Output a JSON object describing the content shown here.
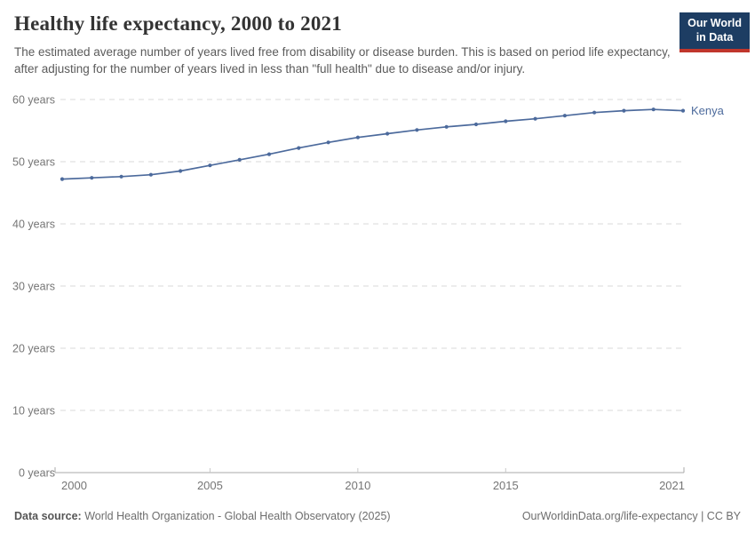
{
  "header": {
    "title": "Healthy life expectancy, 2000 to 2021",
    "subtitle": "The estimated average number of years lived free from disability or disease burden. This is based on period life expectancy, after adjusting for the number of years lived in less than \"full health\" due to disease and/or injury.",
    "logo": {
      "line1": "Our World",
      "line2": "in Data",
      "bg_color": "#1d3d63",
      "accent_color": "#c0362c"
    }
  },
  "chart_data": {
    "type": "line",
    "title": "Healthy life expectancy, 2000 to 2021",
    "xlabel": "",
    "ylabel": "",
    "xlim": [
      2000,
      2021
    ],
    "ylim": [
      0,
      60
    ],
    "x_ticks": [
      2000,
      2005,
      2010,
      2015,
      2021
    ],
    "y_ticks": [
      0,
      10,
      20,
      30,
      40,
      50,
      60
    ],
    "y_tick_suffix": " years",
    "grid": "horizontal-dashed",
    "legend_position": "end-of-line",
    "colors": {
      "gridline": "#d9d9d9",
      "axis": "#a8a8a8",
      "minor_tick": "#c9c9c9",
      "tick_label": "#757575"
    },
    "series": [
      {
        "name": "Kenya",
        "color": "#4c6a9c",
        "x": [
          2000,
          2001,
          2002,
          2003,
          2004,
          2005,
          2006,
          2007,
          2008,
          2009,
          2010,
          2011,
          2012,
          2013,
          2014,
          2015,
          2016,
          2017,
          2018,
          2019,
          2020,
          2021
        ],
        "values": [
          47.2,
          47.4,
          47.6,
          47.9,
          48.5,
          49.4,
          50.3,
          51.2,
          52.2,
          53.1,
          53.9,
          54.5,
          55.1,
          55.6,
          56.0,
          56.5,
          56.9,
          57.4,
          57.9,
          58.2,
          58.4,
          58.2
        ]
      }
    ]
  },
  "footer": {
    "datasource_label": "Data source:",
    "datasource_value": " World Health Organization - Global Health Observatory (2025)",
    "credit": "OurWorldinData.org/life-expectancy | CC BY"
  }
}
